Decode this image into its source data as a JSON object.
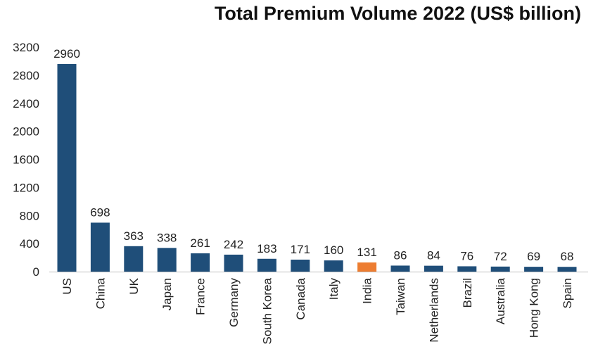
{
  "chart_data": {
    "type": "bar",
    "title": "Total Premium Volume 2022 (US$ billion)",
    "xlabel": "",
    "ylabel": "",
    "categories": [
      "US",
      "China",
      "UK",
      "Japan",
      "France",
      "Germany",
      "South Korea",
      "Canada",
      "Italy",
      "India",
      "Taiwan",
      "Netherlands",
      "Brazil",
      "Australia",
      "Hong Kong",
      "Spain"
    ],
    "values": [
      2960,
      698,
      363,
      338,
      261,
      242,
      183,
      171,
      160,
      131,
      86,
      84,
      76,
      72,
      69,
      68
    ],
    "ylim": [
      0,
      3200
    ],
    "yticks": [
      0,
      400,
      800,
      1200,
      1600,
      2000,
      2400,
      2800,
      3200
    ],
    "grid": false,
    "legend": "none",
    "data_labels": true,
    "colors": {
      "default_bar": "#1f4e79",
      "highlight_bar": "#ed7d31",
      "highlight_category": "India"
    }
  }
}
